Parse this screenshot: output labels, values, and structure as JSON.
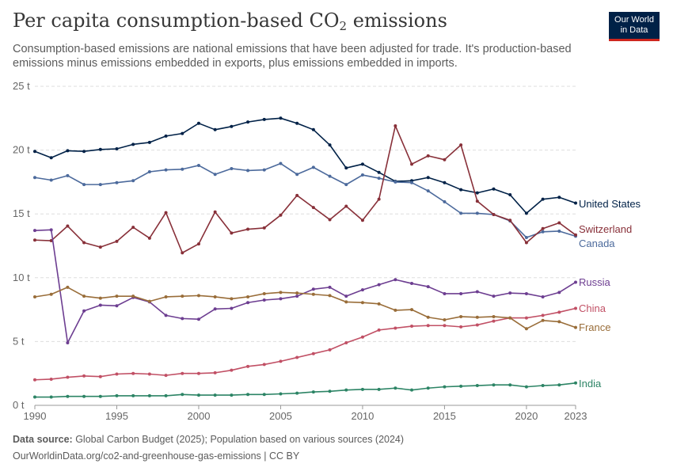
{
  "header": {
    "title_main": "Per capita consumption-based CO",
    "title_sub": "2",
    "title_tail": " emissions",
    "subtitle": "Consumption-based emissions are national emissions that have been adjusted for trade. It's production-based emissions minus emissions embedded in exports, plus emissions embedded in imports."
  },
  "logo": {
    "line1": "Our World",
    "line2": "in Data"
  },
  "footer": {
    "source_label": "Data source:",
    "source_text": " Global Carbon Budget (2025); Population based on various sources (2024)",
    "url_text": "OurWorldinData.org/co2-and-greenhouse-gas-emissions | CC BY"
  },
  "chart_data": {
    "type": "line",
    "x_ticks": [
      1990,
      1995,
      2000,
      2005,
      2010,
      2015,
      2020,
      2023
    ],
    "y_ticks": [
      0,
      5,
      10,
      15,
      20,
      25
    ],
    "y_tick_labels": [
      "0 t",
      "5 t",
      "10 t",
      "15 t",
      "20 t",
      "25 t"
    ],
    "xlim": [
      1990,
      2023
    ],
    "ylim": [
      0,
      25
    ],
    "grid": "horizontal dashed",
    "x": [
      1990,
      1991,
      1992,
      1993,
      1994,
      1995,
      1996,
      1997,
      1998,
      1999,
      2000,
      2001,
      2002,
      2003,
      2004,
      2005,
      2006,
      2007,
      2008,
      2009,
      2010,
      2011,
      2012,
      2013,
      2014,
      2015,
      2016,
      2017,
      2018,
      2019,
      2020,
      2021,
      2022,
      2023
    ],
    "series": [
      {
        "name": "United States",
        "color": "#002147",
        "values": [
          19.9,
          19.4,
          19.95,
          19.9,
          20.05,
          20.1,
          20.45,
          20.6,
          21.1,
          21.3,
          22.1,
          21.6,
          21.85,
          22.2,
          22.4,
          22.5,
          22.1,
          21.6,
          20.4,
          18.6,
          18.9,
          18.25,
          17.55,
          17.6,
          17.85,
          17.45,
          16.9,
          16.65,
          16.95,
          16.5,
          15.05,
          16.15,
          16.3,
          15.85
        ]
      },
      {
        "name": "Canada",
        "color": "#4c6a9c",
        "values": [
          17.85,
          17.65,
          18.0,
          17.3,
          17.3,
          17.45,
          17.6,
          18.3,
          18.45,
          18.5,
          18.8,
          18.1,
          18.55,
          18.4,
          18.45,
          18.95,
          18.1,
          18.65,
          17.95,
          17.3,
          18.05,
          17.8,
          17.5,
          17.45,
          16.8,
          15.95,
          15.05,
          15.05,
          14.95,
          14.45,
          13.15,
          13.6,
          13.65,
          13.25
        ]
      },
      {
        "name": "Switzerland",
        "color": "#883039",
        "values": [
          12.95,
          12.9,
          14.05,
          12.75,
          12.4,
          12.85,
          13.95,
          13.1,
          15.1,
          11.95,
          12.65,
          15.15,
          13.5,
          13.8,
          13.9,
          14.9,
          16.45,
          15.5,
          14.55,
          15.6,
          14.5,
          16.15,
          21.9,
          18.9,
          19.55,
          19.25,
          20.4,
          16.0,
          14.95,
          14.5,
          12.75,
          13.85,
          14.3,
          13.35
        ]
      },
      {
        "name": "Russia",
        "color": "#6d3e91",
        "values": [
          13.7,
          13.75,
          4.9,
          7.4,
          7.85,
          7.8,
          8.45,
          8.1,
          7.05,
          6.8,
          6.75,
          7.55,
          7.6,
          8.05,
          8.25,
          8.35,
          8.55,
          9.1,
          9.25,
          8.55,
          9.05,
          9.45,
          9.85,
          9.55,
          9.3,
          8.75,
          8.75,
          8.9,
          8.55,
          8.8,
          8.75,
          8.5,
          8.85,
          9.65
        ]
      },
      {
        "name": "China",
        "color": "#c15065",
        "values": [
          2.0,
          2.05,
          2.2,
          2.3,
          2.25,
          2.45,
          2.5,
          2.45,
          2.35,
          2.5,
          2.5,
          2.55,
          2.75,
          3.05,
          3.2,
          3.45,
          3.75,
          4.05,
          4.35,
          4.9,
          5.35,
          5.9,
          6.05,
          6.2,
          6.25,
          6.25,
          6.15,
          6.3,
          6.6,
          6.85,
          6.85,
          7.05,
          7.3,
          7.6
        ]
      },
      {
        "name": "France",
        "color": "#996d39",
        "values": [
          8.5,
          8.7,
          9.25,
          8.55,
          8.4,
          8.55,
          8.55,
          8.15,
          8.5,
          8.55,
          8.6,
          8.5,
          8.35,
          8.5,
          8.75,
          8.85,
          8.8,
          8.7,
          8.6,
          8.1,
          8.05,
          7.95,
          7.45,
          7.5,
          6.9,
          6.7,
          6.95,
          6.9,
          6.95,
          6.85,
          6.0,
          6.65,
          6.55,
          6.1
        ]
      },
      {
        "name": "India",
        "color": "#2c8465",
        "values": [
          0.65,
          0.65,
          0.7,
          0.7,
          0.7,
          0.75,
          0.75,
          0.75,
          0.75,
          0.85,
          0.8,
          0.8,
          0.8,
          0.85,
          0.85,
          0.9,
          0.95,
          1.05,
          1.1,
          1.2,
          1.25,
          1.25,
          1.35,
          1.2,
          1.35,
          1.45,
          1.5,
          1.55,
          1.6,
          1.6,
          1.45,
          1.55,
          1.6,
          1.75
        ]
      }
    ]
  }
}
